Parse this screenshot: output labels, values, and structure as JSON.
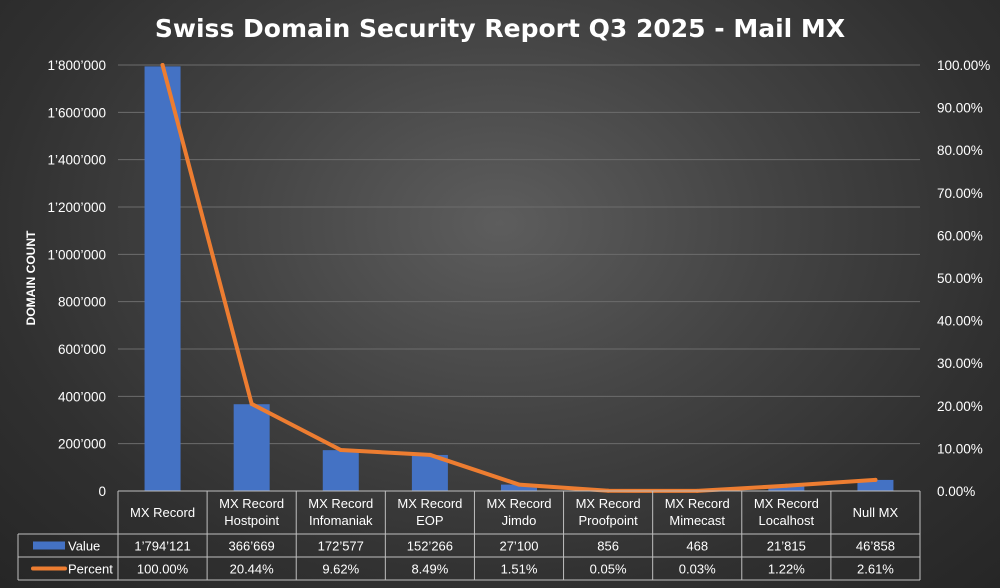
{
  "chart_data": {
    "type": "bar",
    "title": "Swiss Domain Security Report Q3 2025 - Mail MX",
    "ylabel": "DOMAIN COUNT",
    "categories": [
      [
        "MX Record"
      ],
      [
        "MX Record",
        "Hostpoint"
      ],
      [
        "MX Record",
        "Infomaniak"
      ],
      [
        "MX Record",
        "EOP"
      ],
      [
        "MX Record",
        "Jimdo"
      ],
      [
        "MX Record",
        "Proofpoint"
      ],
      [
        "MX Record",
        "Mimecast"
      ],
      [
        "MX Record",
        "Localhost"
      ],
      [
        "Null MX"
      ]
    ],
    "ylim": [
      0,
      1800000
    ],
    "yticks": [
      "0",
      "200’000",
      "400’000",
      "600’000",
      "800’000",
      "1’000’000",
      "1’200’000",
      "1’400’000",
      "1’600’000",
      "1’800’000"
    ],
    "y2lim": [
      0,
      100
    ],
    "y2ticks": [
      "0.00%",
      "10.00%",
      "20.00%",
      "30.00%",
      "40.00%",
      "50.00%",
      "60.00%",
      "70.00%",
      "80.00%",
      "90.00%",
      "100.00%"
    ],
    "grid": true,
    "series": [
      {
        "name": "Value",
        "kind": "bar",
        "axis": "left",
        "color": "#4472c4",
        "values": [
          1794121,
          366669,
          172577,
          152266,
          27100,
          856,
          468,
          21815,
          46858
        ],
        "labels": [
          "1’794’121",
          "366’669",
          "172’577",
          "152’266",
          "27’100",
          "856",
          "468",
          "21’815",
          "46’858"
        ]
      },
      {
        "name": "Percent",
        "kind": "line",
        "axis": "right",
        "color": "#ed7d31",
        "values": [
          100.0,
          20.44,
          9.62,
          8.49,
          1.51,
          0.05,
          0.03,
          1.22,
          2.61
        ],
        "labels": [
          "100.00%",
          "20.44%",
          "9.62%",
          "8.49%",
          "1.51%",
          "0.05%",
          "0.03%",
          "1.22%",
          "2.61%"
        ]
      }
    ],
    "legend": "data-table"
  }
}
